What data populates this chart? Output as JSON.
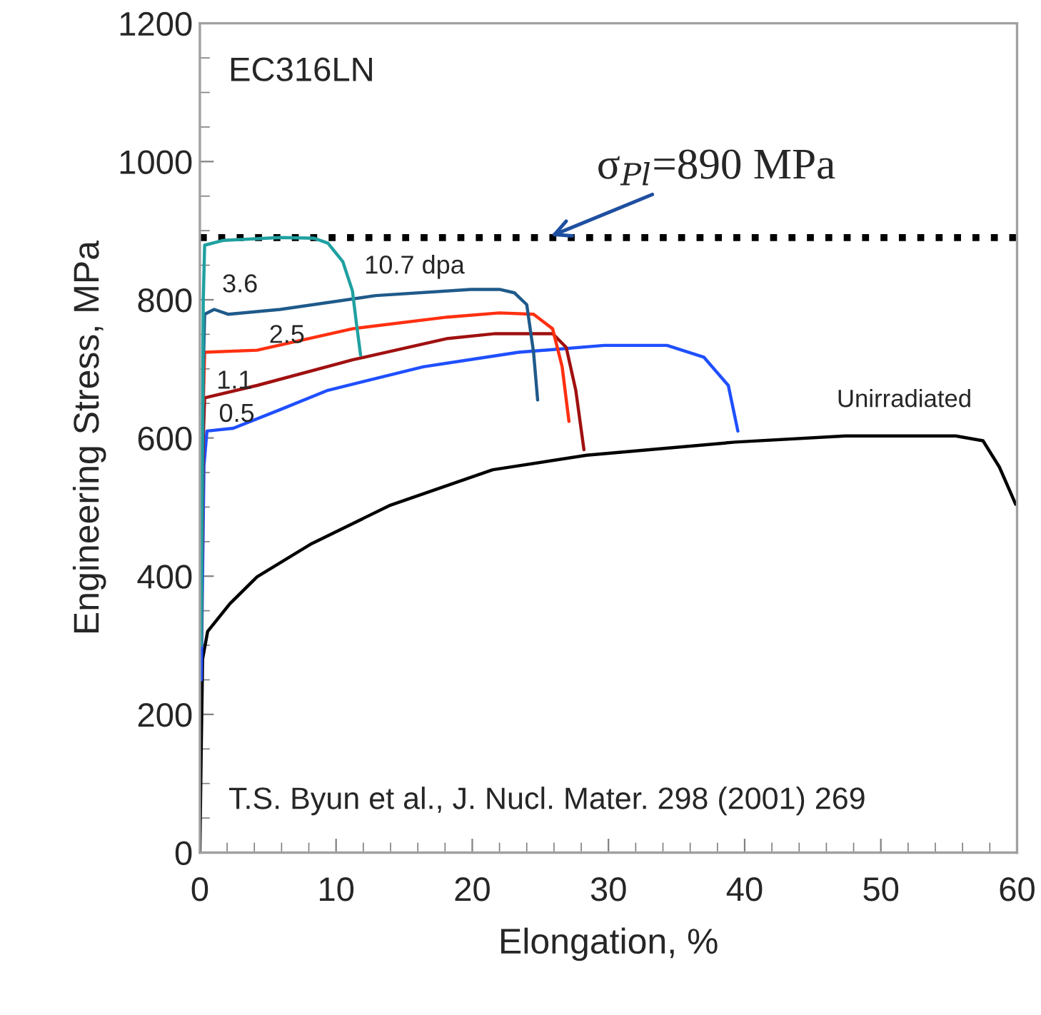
{
  "chart_data": {
    "type": "line",
    "xlabel": "Elongation, %",
    "ylabel": "Engineering Stress, MPa",
    "xlim": [
      0,
      60
    ],
    "ylim": [
      0,
      1200
    ],
    "xticks": [
      0,
      10,
      20,
      30,
      40,
      50,
      60
    ],
    "yticks": [
      0,
      200,
      400,
      600,
      800,
      1000,
      1200
    ],
    "grid": false,
    "legend": false,
    "marker": "none",
    "line_style": "solid",
    "series": [
      {
        "name": "Unirradiated",
        "color": "#000000",
        "x": [
          0,
          0.1,
          0.2,
          0.57,
          2.2,
          4.2,
          8.2,
          13.9,
          21.5,
          28.4,
          39.3,
          47.4,
          55.5,
          57.5,
          58.7,
          59.9
        ],
        "values": [
          0,
          150,
          280,
          320,
          360,
          399,
          447,
          502,
          554,
          575,
          594,
          603,
          603,
          596,
          558,
          504
        ]
      },
      {
        "name": "0.5",
        "color": "#1f4fff",
        "x": [
          0.1,
          0.3,
          0.52,
          2.45,
          5.9,
          9.4,
          16.4,
          23.4,
          29.7,
          34.3,
          37.0,
          38.8,
          39.5
        ],
        "values": [
          250,
          560,
          610,
          614,
          641,
          669,
          703,
          724,
          734,
          734,
          717,
          676,
          610
        ]
      },
      {
        "name": "1.1",
        "color": "#a01010",
        "x": [
          0.1,
          0.25,
          0.35,
          4.2,
          11.2,
          18.2,
          21.7,
          25.9,
          26.9,
          27.6,
          28.2
        ],
        "values": [
          300,
          600,
          658,
          676,
          713,
          744,
          751,
          751,
          731,
          669,
          583
        ]
      },
      {
        "name": "2.5",
        "color": "#ff3010",
        "x": [
          0.25,
          0.35,
          4.2,
          11.2,
          18.2,
          22.0,
          24.5,
          25.9,
          26.6,
          27.1
        ],
        "values": [
          650,
          724,
          727,
          758,
          775,
          781,
          779,
          758,
          703,
          624
        ]
      },
      {
        "name": "3.6",
        "color": "#1f5a8a",
        "x": [
          0.1,
          0.25,
          0.35,
          1.05,
          2.1,
          5.9,
          12.9,
          19.9,
          22.0,
          23.1,
          24.0,
          24.5,
          24.8
        ],
        "values": [
          300,
          700,
          779,
          786,
          779,
          786,
          806,
          815,
          815,
          810,
          793,
          724,
          655
        ]
      },
      {
        "name": "10.7 dpa",
        "color": "#20a0a0",
        "x": [
          0.1,
          0.25,
          0.35,
          1.75,
          5.9,
          8.4,
          9.4,
          10.5,
          11.2,
          11.5,
          11.8
        ],
        "values": [
          300,
          800,
          879,
          886,
          890,
          889,
          882,
          855,
          813,
          765,
          720
        ]
      }
    ],
    "ref_lines": [
      {
        "axis": "y",
        "value": 890,
        "color": "#000000",
        "line_style": "dotted"
      }
    ],
    "annotations": [
      {
        "text": "σ$_{Pl}$=890 MPa",
        "x": 25.5,
        "y": 890
      },
      "EC316LN",
      "T.S. Byun et al., J. Nucl. Mater. 298 (2001) 269"
    ]
  }
}
